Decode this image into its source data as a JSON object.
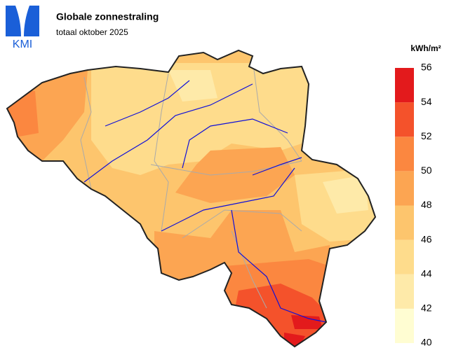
{
  "logo": "KMI",
  "title": "Globale zonnestraling",
  "subtitle": "totaal oktober 2025",
  "legend": {
    "unit": "kWh/m²",
    "ticks": [
      40,
      42,
      44,
      46,
      48,
      50,
      52,
      54,
      56
    ],
    "colors": [
      "#fffdd2",
      "#feeaa9",
      "#fedc8c",
      "#fdc56d",
      "#fca552",
      "#fb8740",
      "#f4522b",
      "#e31a1c"
    ]
  }
}
